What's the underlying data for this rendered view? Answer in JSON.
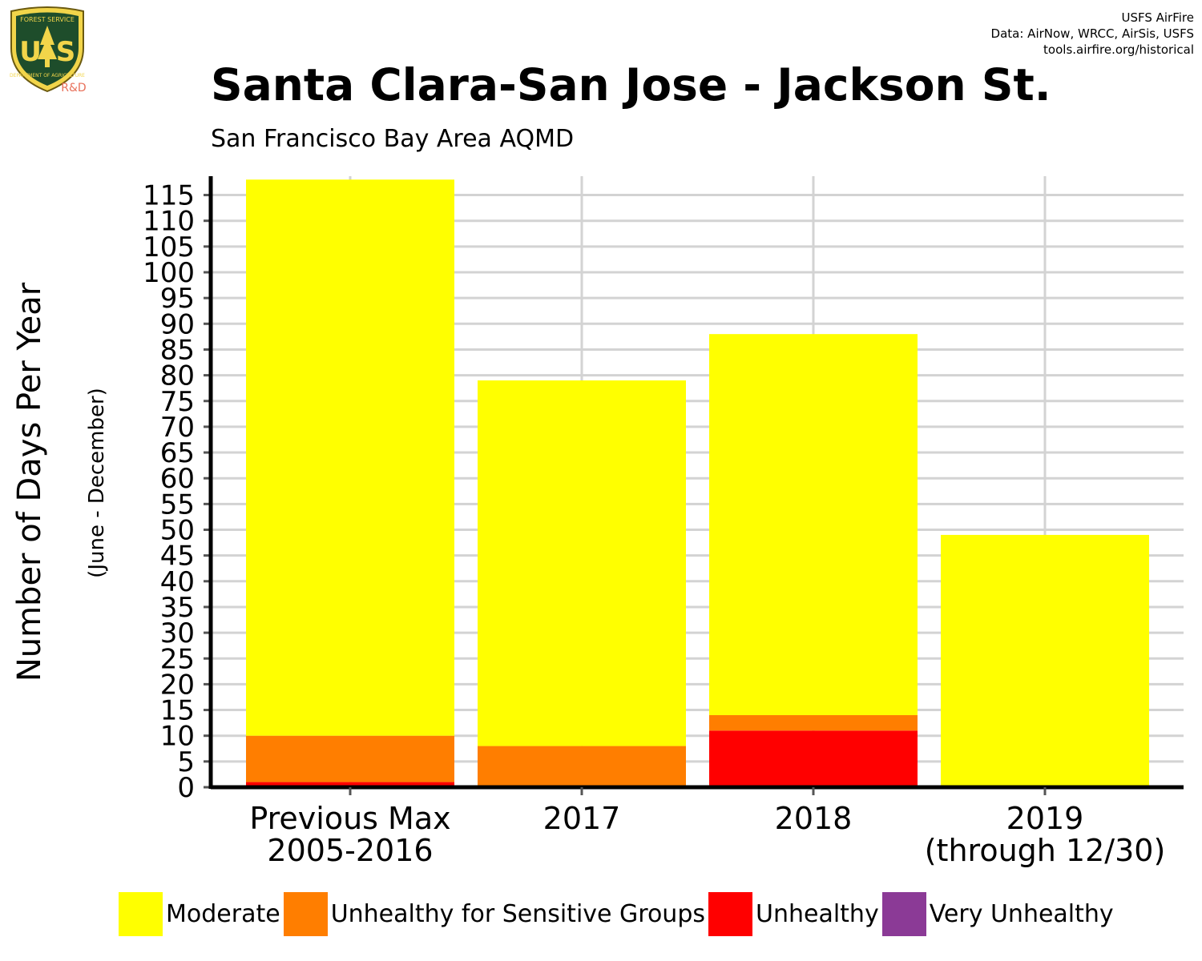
{
  "header": {
    "credit_line1": "USFS AirFire",
    "credit_line2": "Data: AirNow, WRCC, AirSis, USFS",
    "credit_line3": "tools.airfire.org/historical",
    "logo_label": "R&D",
    "logo_text_top": "FOREST SERVICE",
    "logo_text_bottom": "DEPARTMENT OF AGRICULTURE",
    "logo_letters": "US"
  },
  "chart_data": {
    "type": "bar",
    "stacked": true,
    "title": "Santa Clara-San Jose - Jackson St.",
    "subtitle": "San Francisco Bay Area AQMD",
    "ylabel": "Number of Days Per Year",
    "ylabel_sub": "(June - December)",
    "xlabel": "",
    "ylim": [
      0,
      118
    ],
    "yticks": [
      "0",
      "5",
      "10",
      "15",
      "20",
      "25",
      "30",
      "35",
      "40",
      "45",
      "50",
      "55",
      "60",
      "65",
      "70",
      "75",
      "80",
      "85",
      "90",
      "95",
      "100",
      "105",
      "110",
      "115"
    ],
    "categories": [
      [
        "Previous Max",
        "2005-2016"
      ],
      [
        "2017"
      ],
      [
        "2018"
      ],
      [
        "2019",
        "(through 12/30)"
      ]
    ],
    "series": [
      {
        "name": "Very Unhealthy",
        "color": "#8B3A96",
        "values": [
          0,
          0,
          0,
          0
        ]
      },
      {
        "name": "Unhealthy",
        "color": "#FF0000",
        "values": [
          1,
          0,
          11,
          0
        ]
      },
      {
        "name": "Unhealthy for Sensitive Groups",
        "color": "#FF7E00",
        "values": [
          9,
          8,
          3,
          0
        ]
      },
      {
        "name": "Moderate",
        "color": "#FFFF00",
        "values": [
          108,
          71,
          74,
          49
        ]
      }
    ],
    "legend": {
      "position": "bottom",
      "items": [
        {
          "label": "Moderate",
          "color": "#FFFF00"
        },
        {
          "label": "Unhealthy for Sensitive Groups",
          "color": "#FF7E00"
        },
        {
          "label": "Unhealthy",
          "color": "#FF0000"
        },
        {
          "label": "Very Unhealthy",
          "color": "#8B3A96"
        }
      ]
    },
    "grid": true
  }
}
